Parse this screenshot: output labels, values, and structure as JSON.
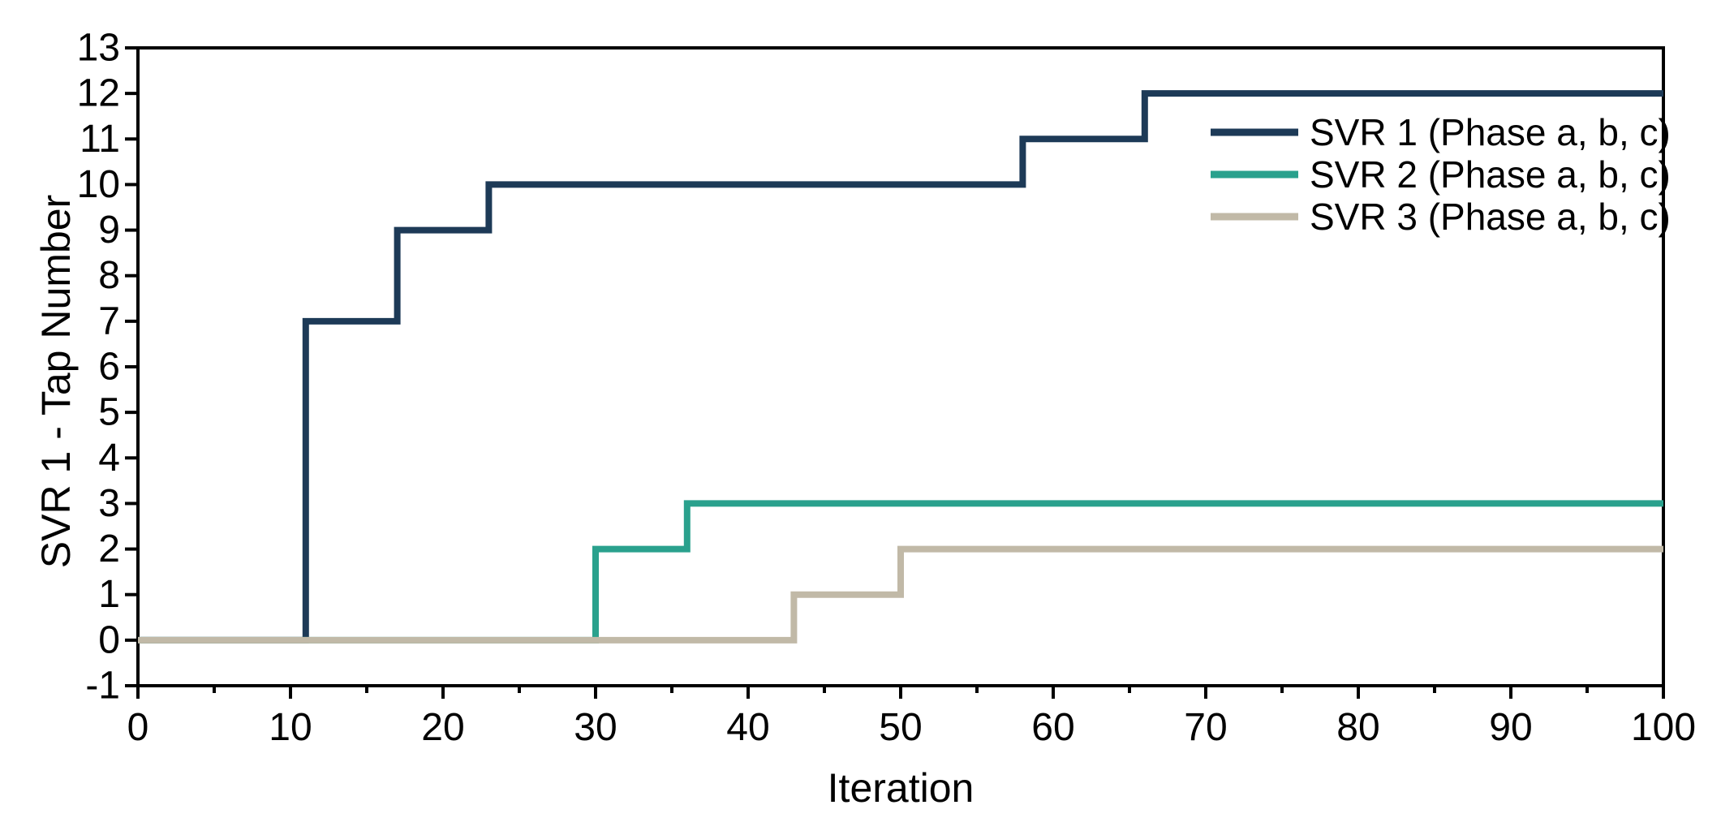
{
  "chart_data": {
    "type": "line",
    "subtype": "step-post",
    "title": "",
    "xlabel": "Iteration",
    "ylabel": "SVR 1 - Tap Number",
    "xlim": [
      0,
      100
    ],
    "ylim": [
      -1,
      13
    ],
    "x_major_ticks": [
      0,
      10,
      20,
      30,
      40,
      50,
      60,
      70,
      80,
      90,
      100
    ],
    "x_minor_ticks": [
      5,
      15,
      25,
      35,
      45,
      55,
      65,
      75,
      85,
      95
    ],
    "y_major_ticks": [
      -1,
      0,
      1,
      2,
      3,
      4,
      5,
      6,
      7,
      8,
      9,
      10,
      11,
      12,
      13
    ],
    "grid": false,
    "legend_position": "top-right",
    "series": [
      {
        "name": "SVR 1 (Phase a, b, c)",
        "color": "#1d3a57",
        "step_changes": [
          [
            0,
            0
          ],
          [
            11,
            7
          ],
          [
            17,
            9
          ],
          [
            23,
            10
          ],
          [
            58,
            11
          ],
          [
            66,
            12
          ]
        ],
        "x_end": 100
      },
      {
        "name": "SVR 2 (Phase a, b, c)",
        "color": "#2aa18d",
        "step_changes": [
          [
            0,
            0
          ],
          [
            30,
            2
          ],
          [
            36,
            3
          ]
        ],
        "x_end": 100
      },
      {
        "name": "SVR 3 (Phase a, b, c)",
        "color": "#c1b9a7",
        "step_changes": [
          [
            0,
            0
          ],
          [
            43,
            1
          ],
          [
            50,
            2
          ]
        ],
        "x_end": 100
      }
    ]
  },
  "colors": {
    "background": "#ffffff",
    "frame": "#000000",
    "text": "#000000"
  }
}
